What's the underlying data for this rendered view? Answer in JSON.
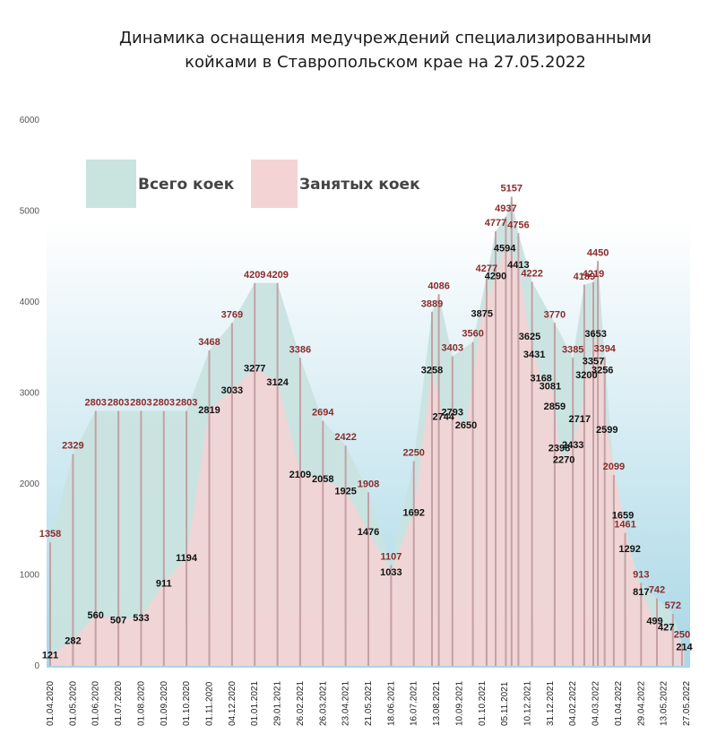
{
  "chart_data": {
    "type": "area",
    "title_lines": [
      "Динамика оснащения медучреждений специализированными",
      "койками в Ставропольском крае  на 27.05.2022"
    ],
    "ylim": [
      0,
      6000
    ],
    "yticks": [
      "0",
      "1000",
      "2000",
      "3000",
      "4000",
      "5000",
      "6000"
    ],
    "grid": false,
    "legend_position": "top-left",
    "colors": {
      "total_fill": "#c9e3df",
      "occupied_fill": "#f4d3d5",
      "total_label": "#8b2b2b",
      "occupied_label": "#111111",
      "bar_line": "#c4a0a4",
      "background_top": "#ffffff",
      "background_bottom": "#a8d7e6"
    },
    "x_tick_labels": [
      "01.04.2020",
      "01.05.2020",
      "01.06.2020",
      "01.07.2020",
      "01.08.2020",
      "01.09.2020",
      "01.10.2020",
      "01.11.2020",
      "04.12.2020",
      "01.01.2021",
      "29.01.2021",
      "26.02.2021",
      "26.03.2021",
      "23.04.2021",
      "21.05.2021",
      "18.06.2021",
      "16.07.2021",
      "13.08.2021",
      "10.09.2021",
      "01.10.2021",
      "05.11.2021",
      "10.12.2021",
      "31.12.2021",
      "04.02.2022",
      "04.03.2022",
      "01.04.2022",
      "29.04.2022",
      "13.05.2022",
      "27.05.2022"
    ],
    "series": [
      {
        "name": "Всего коек",
        "points": [
          {
            "idx": 0,
            "value": 1358
          },
          {
            "idx": 1,
            "value": 2329
          },
          {
            "idx": 2,
            "value": 2803
          },
          {
            "idx": 3,
            "value": 2803
          },
          {
            "idx": 4,
            "value": 2803
          },
          {
            "idx": 5,
            "value": 2803
          },
          {
            "idx": 6,
            "value": 2803
          },
          {
            "idx": 7,
            "value": 3468
          },
          {
            "idx": 8,
            "value": 3769
          },
          {
            "idx": 9,
            "value": 4209
          },
          {
            "idx": 10,
            "value": 4209
          },
          {
            "idx": 11,
            "value": 3386
          },
          {
            "idx": 12,
            "value": 2694
          },
          {
            "idx": 13,
            "value": 2422
          },
          {
            "idx": 14,
            "value": 1908
          },
          {
            "idx": 15,
            "value": 1107
          },
          {
            "idx": 16,
            "value": 2250
          },
          {
            "idx": 16.8,
            "value": 3889
          },
          {
            "idx": 17.1,
            "value": 4086
          },
          {
            "idx": 17.7,
            "value": 3403
          },
          {
            "idx": 18.6,
            "value": 3560
          },
          {
            "idx": 19.2,
            "value": 4277
          },
          {
            "idx": 19.6,
            "value": 4777
          },
          {
            "idx": 20.05,
            "value": 4937
          },
          {
            "idx": 20.3,
            "value": 5157
          },
          {
            "idx": 20.6,
            "value": 4756
          },
          {
            "idx": 21.2,
            "value": 4222
          },
          {
            "idx": 22.2,
            "value": 3770
          },
          {
            "idx": 23.0,
            "value": 3385
          },
          {
            "idx": 23.5,
            "value": 4189
          },
          {
            "idx": 23.9,
            "value": 4219
          },
          {
            "idx": 24.1,
            "value": 4450
          },
          {
            "idx": 24.4,
            "value": 3394
          },
          {
            "idx": 24.8,
            "value": 2099
          },
          {
            "idx": 25.3,
            "value": 1461
          },
          {
            "idx": 26.0,
            "value": 913
          },
          {
            "idx": 26.7,
            "value": 742
          },
          {
            "idx": 27.4,
            "value": 572
          },
          {
            "idx": 27.8,
            "value": 250
          }
        ]
      },
      {
        "name": "Занятых коек",
        "points": [
          {
            "idx": 0,
            "value": 121
          },
          {
            "idx": 1,
            "value": 282
          },
          {
            "idx": 2,
            "value": 560
          },
          {
            "idx": 3,
            "value": 507
          },
          {
            "idx": 4,
            "value": 533
          },
          {
            "idx": 5,
            "value": 911
          },
          {
            "idx": 6,
            "value": 1194
          },
          {
            "idx": 7,
            "value": 2819
          },
          {
            "idx": 8,
            "value": 3033
          },
          {
            "idx": 9,
            "value": 3277
          },
          {
            "idx": 10,
            "value": 3124
          },
          {
            "idx": 11,
            "value": 2109
          },
          {
            "idx": 12,
            "value": 2058
          },
          {
            "idx": 13,
            "value": 1925
          },
          {
            "idx": 14,
            "value": 1476
          },
          {
            "idx": 15,
            "value": 1033
          },
          {
            "idx": 16,
            "value": 1692
          },
          {
            "idx": 16.8,
            "value": 3258
          },
          {
            "idx": 17.3,
            "value": 2744
          },
          {
            "idx": 17.7,
            "value": 2793
          },
          {
            "idx": 18.3,
            "value": 2650
          },
          {
            "idx": 19.0,
            "value": 3875
          },
          {
            "idx": 19.6,
            "value": 4290
          },
          {
            "idx": 20.0,
            "value": 4594
          },
          {
            "idx": 20.6,
            "value": 4413
          },
          {
            "idx": 21.1,
            "value": 3625
          },
          {
            "idx": 21.3,
            "value": 3431
          },
          {
            "idx": 21.6,
            "value": 3168
          },
          {
            "idx": 22.0,
            "value": 3081
          },
          {
            "idx": 22.2,
            "value": 2859
          },
          {
            "idx": 22.4,
            "value": 2398
          },
          {
            "idx": 22.6,
            "value": 2270
          },
          {
            "idx": 23.0,
            "value": 2433
          },
          {
            "idx": 23.3,
            "value": 2717
          },
          {
            "idx": 23.6,
            "value": 3200
          },
          {
            "idx": 23.9,
            "value": 3357
          },
          {
            "idx": 24.0,
            "value": 3653
          },
          {
            "idx": 24.3,
            "value": 3256
          },
          {
            "idx": 24.5,
            "value": 2599
          },
          {
            "idx": 25.2,
            "value": 1659
          },
          {
            "idx": 25.5,
            "value": 1292
          },
          {
            "idx": 26.0,
            "value": 817
          },
          {
            "idx": 26.6,
            "value": 499
          },
          {
            "idx": 27.1,
            "value": 427
          },
          {
            "idx": 27.9,
            "value": 214
          }
        ]
      }
    ]
  }
}
